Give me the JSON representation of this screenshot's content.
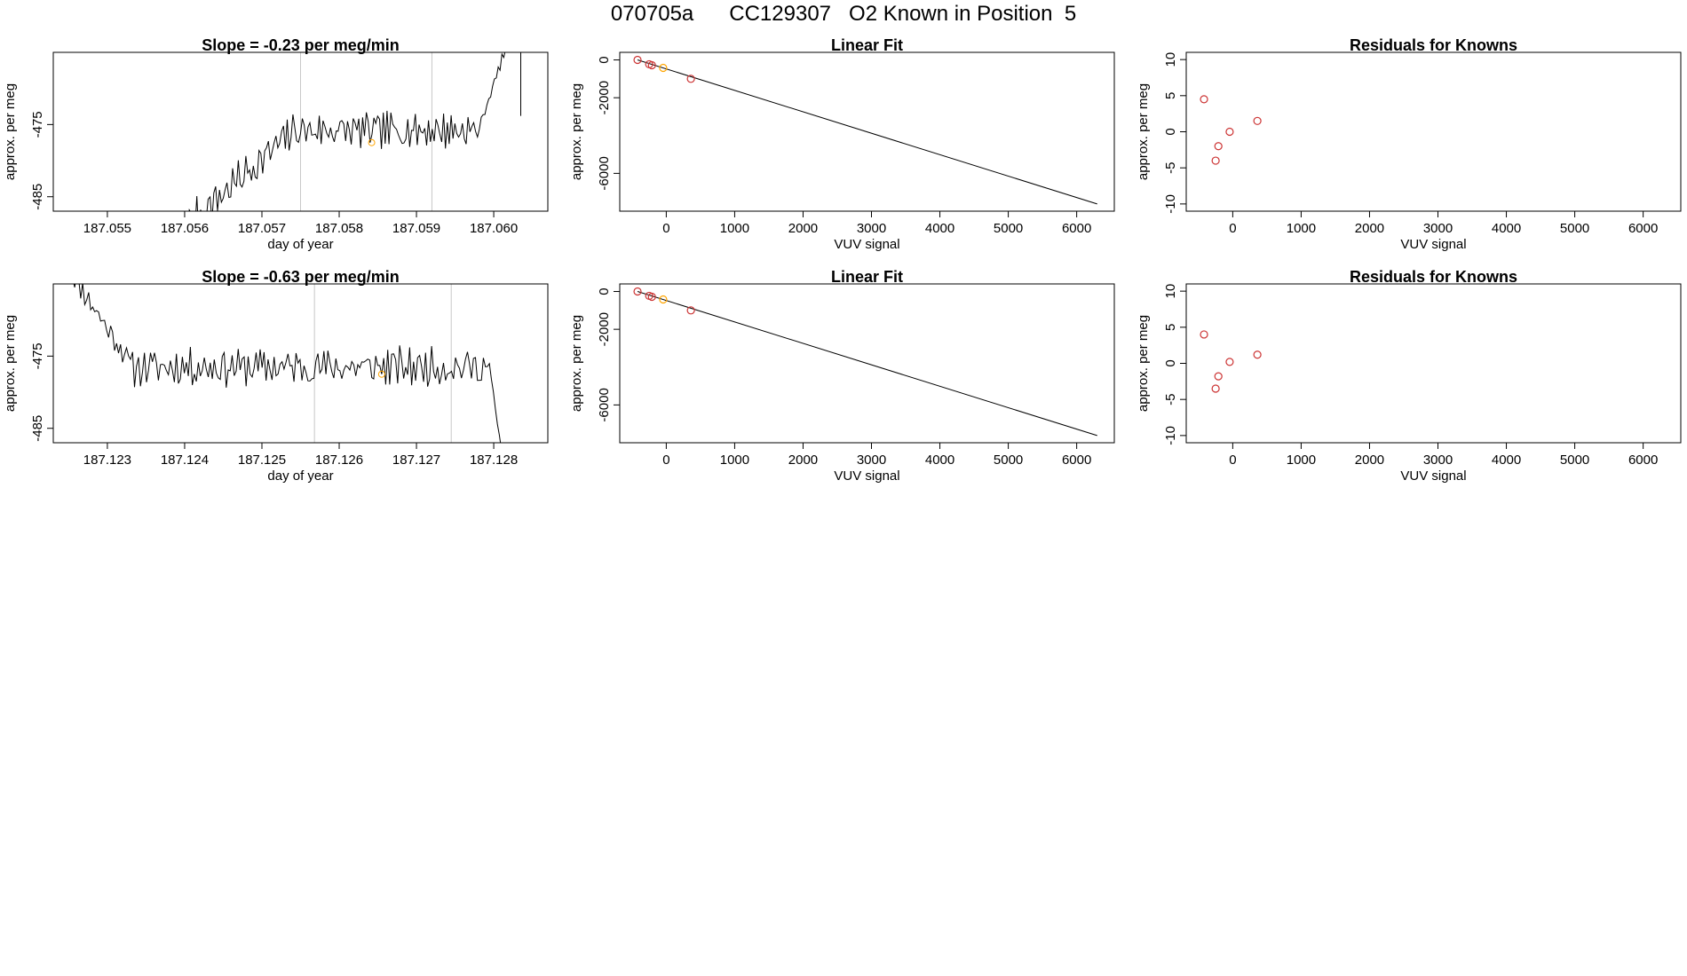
{
  "figure": {
    "title": "070705a      CC129307   O2 Known in Position  5"
  },
  "chart_data": [
    {
      "type": "line",
      "panel": "row1-col1",
      "title": "Slope =  -0.23  per meg/min",
      "xlabel": "day of year",
      "ylabel": "approx. per meg",
      "xlim": [
        187.0543,
        187.0607
      ],
      "ylim": [
        -487.0,
        -465.0
      ],
      "xticks": [
        187.055,
        187.056,
        187.057,
        187.058,
        187.059,
        187.06
      ],
      "xtick_labels": [
        "187.055",
        "187.056",
        "187.057",
        "187.058",
        "187.059",
        "187.060"
      ],
      "yticks": [
        -485,
        -475
      ],
      "ytick_labels": [
        "-485",
        "-475"
      ],
      "vlines": [
        187.0575,
        187.0592
      ],
      "highlight": {
        "x": 187.05842,
        "y": -477.5,
        "color": "#ffa500"
      },
      "series": {
        "x_start": 187.0555,
        "x_end": 187.06035,
        "n": 200,
        "seed": 7,
        "baseline": -475.8,
        "amplitude": 2.6,
        "ramp": {
          "x0": 187.0555,
          "x1": 187.0574,
          "from": -494.0,
          "to": -476.0
        },
        "tail": {
          "x0": 187.0598,
          "x1": 187.0602,
          "from": -475.8,
          "to": -463.0
        },
        "end": {
          "x": 187.06035,
          "y": -473.8
        }
      },
      "line_color": "#000000"
    },
    {
      "type": "scatter",
      "panel": "row1-col2",
      "title": "Linear Fit",
      "xlabel": "VUV signal",
      "ylabel": "approx. per meg",
      "xlim": [
        -680,
        6550
      ],
      "ylim": [
        -8000,
        400
      ],
      "xticks": [
        0,
        1000,
        2000,
        3000,
        4000,
        5000,
        6000
      ],
      "xtick_labels": [
        "0",
        "1000",
        "2000",
        "3000",
        "4000",
        "5000",
        "6000"
      ],
      "yticks": [
        0,
        -2000,
        -6000
      ],
      "ytick_labels": [
        "0",
        "-2000",
        "-6000"
      ],
      "points": [
        {
          "x": -420,
          "y": 0,
          "color": "#cc3333"
        },
        {
          "x": -250,
          "y": -230,
          "color": "#cc3333"
        },
        {
          "x": -210,
          "y": -280,
          "color": "#cc3333"
        },
        {
          "x": -45,
          "y": -420,
          "color": "#ffa500"
        },
        {
          "x": 360,
          "y": -1000,
          "color": "#cc3333"
        }
      ],
      "fit_line": {
        "x0": -420,
        "y0": 0,
        "x1": 6300,
        "y1": -7620
      },
      "line_color": "#000000"
    },
    {
      "type": "scatter",
      "panel": "row1-col3",
      "title": "Residuals for Knowns",
      "xlabel": "VUV signal",
      "ylabel": "approx. per meg",
      "xlim": [
        -680,
        6550
      ],
      "ylim": [
        -11,
        11
      ],
      "xticks": [
        0,
        1000,
        2000,
        3000,
        4000,
        5000,
        6000
      ],
      "xtick_labels": [
        "0",
        "1000",
        "2000",
        "3000",
        "4000",
        "5000",
        "6000"
      ],
      "yticks": [
        -10,
        -5,
        0,
        5,
        10
      ],
      "ytick_labels": [
        "-10",
        "-5",
        "0",
        "5",
        "10"
      ],
      "points": [
        {
          "x": -420,
          "y": 4.5,
          "color": "#cc3333"
        },
        {
          "x": -250,
          "y": -4.0,
          "color": "#cc3333"
        },
        {
          "x": -210,
          "y": -2.0,
          "color": "#cc3333"
        },
        {
          "x": -45,
          "y": 0.0,
          "color": "#cc3333"
        },
        {
          "x": 360,
          "y": 1.5,
          "color": "#cc3333"
        }
      ]
    },
    {
      "type": "line",
      "panel": "row2-col1",
      "title": "Slope =  -0.63  per meg/min",
      "xlabel": "day of year",
      "ylabel": "approx. per meg",
      "xlim": [
        187.1223,
        187.1287
      ],
      "ylim": [
        -487.0,
        -465.0
      ],
      "xticks": [
        187.123,
        187.124,
        187.125,
        187.126,
        187.127,
        187.128
      ],
      "xtick_labels": [
        "187.123",
        "187.124",
        "187.125",
        "187.126",
        "187.127",
        "187.128"
      ],
      "yticks": [
        -485,
        -475
      ],
      "ytick_labels": [
        "-485",
        "-475"
      ],
      "vlines": [
        187.12568,
        187.12745
      ],
      "highlight": {
        "x": 187.12655,
        "y": -477.5,
        "color": "#ffa500"
      },
      "series": {
        "x_start": 187.1225,
        "x_end": 187.12815,
        "n": 220,
        "seed": 11,
        "baseline": -476.5,
        "amplitude": 2.8,
        "head": {
          "x0": 187.1225,
          "x1": 187.1233,
          "from": -463.0,
          "to": -476.0
        },
        "tail": {
          "x0": 187.12795,
          "x1": 187.12815,
          "from": -477.0,
          "to": -492.0
        }
      },
      "line_color": "#000000"
    },
    {
      "type": "scatter",
      "panel": "row2-col2",
      "title": "Linear Fit",
      "xlabel": "VUV signal",
      "ylabel": "approx. per meg",
      "xlim": [
        -680,
        6550
      ],
      "ylim": [
        -8000,
        400
      ],
      "xticks": [
        0,
        1000,
        2000,
        3000,
        4000,
        5000,
        6000
      ],
      "xtick_labels": [
        "0",
        "1000",
        "2000",
        "3000",
        "4000",
        "5000",
        "6000"
      ],
      "yticks": [
        0,
        -2000,
        -6000
      ],
      "ytick_labels": [
        "0",
        "-2000",
        "-6000"
      ],
      "points": [
        {
          "x": -420,
          "y": 0,
          "color": "#cc3333"
        },
        {
          "x": -250,
          "y": -230,
          "color": "#cc3333"
        },
        {
          "x": -210,
          "y": -280,
          "color": "#cc3333"
        },
        {
          "x": -45,
          "y": -420,
          "color": "#ffa500"
        },
        {
          "x": 360,
          "y": -1000,
          "color": "#cc3333"
        }
      ],
      "fit_line": {
        "x0": -420,
        "y0": 0,
        "x1": 6300,
        "y1": -7620
      },
      "line_color": "#000000"
    },
    {
      "type": "scatter",
      "panel": "row2-col3",
      "title": "Residuals for Knowns",
      "xlabel": "VUV signal",
      "ylabel": "approx. per meg",
      "xlim": [
        -680,
        6550
      ],
      "ylim": [
        -11,
        11
      ],
      "xticks": [
        0,
        1000,
        2000,
        3000,
        4000,
        5000,
        6000
      ],
      "xtick_labels": [
        "0",
        "1000",
        "2000",
        "3000",
        "4000",
        "5000",
        "6000"
      ],
      "yticks": [
        -10,
        -5,
        0,
        5,
        10
      ],
      "ytick_labels": [
        "-10",
        "-5",
        "0",
        "5",
        "10"
      ],
      "points": [
        {
          "x": -420,
          "y": 4.0,
          "color": "#cc3333"
        },
        {
          "x": -250,
          "y": -3.5,
          "color": "#cc3333"
        },
        {
          "x": -210,
          "y": -1.8,
          "color": "#cc3333"
        },
        {
          "x": -45,
          "y": 0.2,
          "color": "#cc3333"
        },
        {
          "x": 360,
          "y": 1.2,
          "color": "#cc3333"
        }
      ]
    }
  ]
}
